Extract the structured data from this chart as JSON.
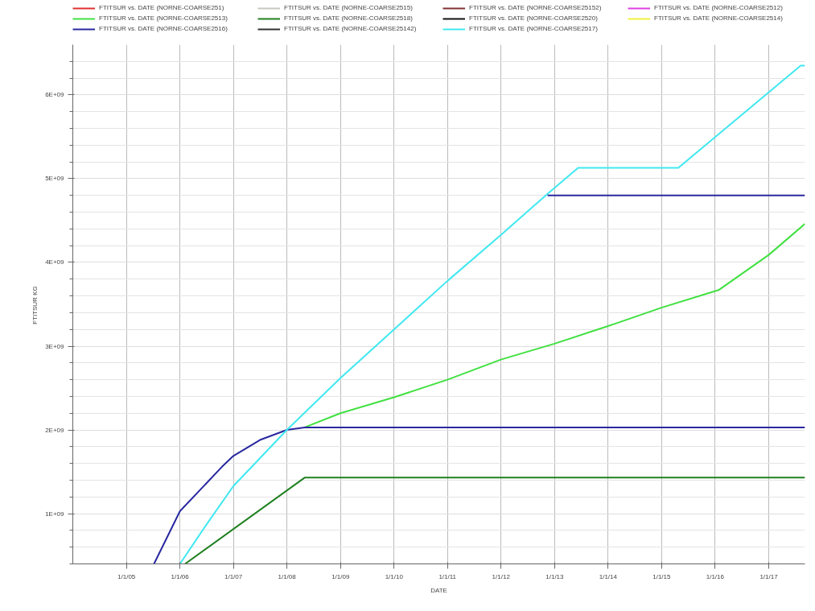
{
  "chart_data": {
    "type": "line",
    "xlabel": "DATE",
    "ylabel": "FTITSUR  KG",
    "legend": "top",
    "grid": true,
    "marker": "none",
    "line_style": "solid",
    "xlim": [
      "2004-01-01",
      "2017-09-05"
    ],
    "ylim": [
      400000000,
      6600000000
    ],
    "xticks": [
      {
        "value": "2005-01-01",
        "label": "1/1/05"
      },
      {
        "value": "2006-01-01",
        "label": "1/1/06"
      },
      {
        "value": "2007-01-01",
        "label": "1/1/07"
      },
      {
        "value": "2008-01-01",
        "label": "1/1/08"
      },
      {
        "value": "2009-01-01",
        "label": "1/1/09"
      },
      {
        "value": "2010-01-01",
        "label": "1/1/10"
      },
      {
        "value": "2011-01-01",
        "label": "1/1/11"
      },
      {
        "value": "2012-01-01",
        "label": "1/1/12"
      },
      {
        "value": "2013-01-01",
        "label": "1/1/13"
      },
      {
        "value": "2014-01-01",
        "label": "1/1/14"
      },
      {
        "value": "2015-01-01",
        "label": "1/1/15"
      },
      {
        "value": "2016-01-01",
        "label": "1/1/16"
      },
      {
        "value": "2017-01-01",
        "label": "1/1/17"
      }
    ],
    "yticks": [
      {
        "value": 400000000,
        "label": null
      },
      {
        "value": 600000000,
        "label": null
      },
      {
        "value": 800000000,
        "label": null
      },
      {
        "value": 1000000000,
        "label": "1E+09"
      },
      {
        "value": 1200000000,
        "label": null
      },
      {
        "value": 1400000000,
        "label": null
      },
      {
        "value": 1600000000,
        "label": null
      },
      {
        "value": 1800000000,
        "label": null
      },
      {
        "value": 2000000000,
        "label": "2E+09"
      },
      {
        "value": 2200000000,
        "label": null
      },
      {
        "value": 2400000000,
        "label": null
      },
      {
        "value": 2600000000,
        "label": null
      },
      {
        "value": 2800000000,
        "label": null
      },
      {
        "value": 3000000000,
        "label": "3E+09"
      },
      {
        "value": 3200000000,
        "label": null
      },
      {
        "value": 3400000000,
        "label": null
      },
      {
        "value": 3600000000,
        "label": null
      },
      {
        "value": 3800000000,
        "label": null
      },
      {
        "value": 4000000000,
        "label": "4E+09"
      },
      {
        "value": 4200000000,
        "label": null
      },
      {
        "value": 4400000000,
        "label": null
      },
      {
        "value": 4600000000,
        "label": null
      },
      {
        "value": 4800000000,
        "label": null
      },
      {
        "value": 5000000000,
        "label": "5E+09"
      },
      {
        "value": 5200000000,
        "label": null
      },
      {
        "value": 5400000000,
        "label": null
      },
      {
        "value": 5600000000,
        "label": null
      },
      {
        "value": 5800000000,
        "label": null
      },
      {
        "value": 6000000000,
        "label": "6E+09"
      },
      {
        "value": 6200000000,
        "label": null
      },
      {
        "value": 6400000000,
        "label": null
      }
    ],
    "series": [
      {
        "name": "FTITSUR vs. DATE (NORNE-COARSE251)",
        "color": "#e03030"
      },
      {
        "name": "FTITSUR vs. DATE (NORNE-COARSE2515)",
        "color": "#c8c8c0"
      },
      {
        "name": "FTITSUR vs. DATE (NORNE-COARSE25152)",
        "color": "#803030"
      },
      {
        "name": "FTITSUR vs. DATE (NORNE-COARSE2512)",
        "color": "#e040e0"
      },
      {
        "name": "FTITSUR vs. DATE (NORNE-COARSE2513)",
        "color": "#40e040",
        "x": [
          "2008-05-01",
          "2009-01-01",
          "2010-01-01",
          "2011-01-01",
          "2012-01-01",
          "2013-01-01",
          "2014-01-01",
          "2015-01-01",
          "2016-01-25",
          "2017-01-01",
          "2017-09-05"
        ],
        "values": [
          2030000000,
          2200000000,
          2390000000,
          2600000000,
          2840000000,
          3030000000,
          3240000000,
          3460000000,
          3670000000,
          4090000000,
          4460000000
        ]
      },
      {
        "name": "FTITSUR vs. DATE (NORNE-COARSE2518)",
        "color": "#208020",
        "x": [
          "2006-02-05",
          "2008-05-01",
          "2017-09-05"
        ],
        "values": [
          400000000,
          1430000000,
          1430000000
        ]
      },
      {
        "name": "FTITSUR vs. DATE (NORNE-COARSE2520)",
        "color": "#101010"
      },
      {
        "name": "FTITSUR vs. DATE (NORNE-COARSE2514)",
        "color": "#f0f040"
      },
      {
        "name": "FTITSUR vs. DATE (NORNE-COARSE2516)",
        "color": "#2828a0",
        "x": [
          "2005-07-08",
          "2006-01-01",
          "2006-10-15",
          "2007-01-01",
          "2007-07-01",
          "2008-01-01",
          "2008-05-01",
          "2017-09-05"
        ],
        "values": [
          400000000,
          1030000000,
          1560000000,
          1690000000,
          1880000000,
          2000000000,
          2030000000,
          2030000000
        ]
      },
      {
        "name": "FTITSUR vs. DATE (NORNE-COARSE25142)",
        "color": "#303030"
      },
      {
        "name": "FTITSUR vs. DATE (NORNE-COARSE2517)",
        "color": "#40e8f0",
        "x": [
          "2006-01-01",
          "2006-07-01",
          "2007-01-01",
          "2008-01-01",
          "2009-01-01",
          "2010-01-01",
          "2011-01-01",
          "2012-01-01",
          "2012-11-14",
          "2013-06-10",
          "2015-04-25",
          "2017-08-07",
          "2017-09-05"
        ],
        "values": [
          400000000,
          870000000,
          1330000000,
          2000000000,
          2620000000,
          3200000000,
          3780000000,
          4330000000,
          4820000000,
          5130000000,
          5130000000,
          6350000000,
          6350000000
        ]
      },
      {
        "color": "#2828a0",
        "x": [
          "2012-11-14",
          "2017-09-05"
        ],
        "values": [
          4800000000,
          4800000000
        ]
      }
    ]
  }
}
